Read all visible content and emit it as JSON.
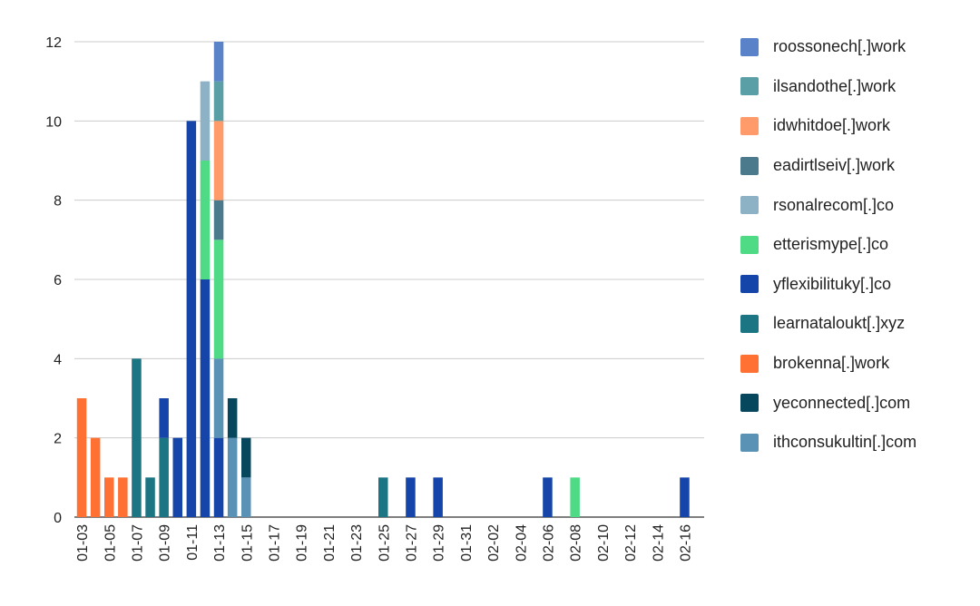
{
  "chart_data": {
    "type": "bar",
    "stacked": true,
    "title": "",
    "xlabel": "",
    "ylabel": "",
    "ylim": [
      0,
      12
    ],
    "y_ticks": [
      0,
      2,
      4,
      6,
      8,
      10,
      12
    ],
    "grid": true,
    "legend_position": "right",
    "categories": [
      "01-03",
      "01-04",
      "01-05",
      "01-06",
      "01-07",
      "01-08",
      "01-09",
      "01-10",
      "01-11",
      "01-12",
      "01-13",
      "01-14",
      "01-15",
      "01-16",
      "01-17",
      "01-18",
      "01-19",
      "01-20",
      "01-21",
      "01-22",
      "01-23",
      "01-24",
      "01-25",
      "01-26",
      "01-27",
      "01-28",
      "01-29",
      "01-30",
      "01-31",
      "02-01",
      "02-02",
      "02-03",
      "02-04",
      "02-05",
      "02-06",
      "02-07",
      "02-08",
      "02-09",
      "02-10",
      "02-11",
      "02-12",
      "02-13",
      "02-14",
      "02-15",
      "02-16"
    ],
    "tick_labels": [
      "01-03",
      "01-05",
      "01-07",
      "01-09",
      "01-11",
      "01-13",
      "01-15",
      "01-17",
      "01-19",
      "01-21",
      "01-23",
      "01-25",
      "01-27",
      "01-29",
      "01-31",
      "02-02",
      "02-04",
      "02-06",
      "02-08",
      "02-10",
      "02-12",
      "02-14",
      "02-16"
    ],
    "series": [
      {
        "name": "brokenna[.]work",
        "color": "#ff7033",
        "values": [
          3,
          2,
          1,
          1,
          0,
          0,
          0,
          0,
          0,
          0,
          0,
          0,
          0,
          0,
          0,
          0,
          0,
          0,
          0,
          0,
          0,
          0,
          0,
          0,
          0,
          0,
          0,
          0,
          0,
          0,
          0,
          0,
          0,
          0,
          0,
          0,
          0,
          0,
          0,
          0,
          0,
          0,
          0,
          0,
          0
        ]
      },
      {
        "name": "learnataloukt[.]xyz",
        "color": "#1b7582",
        "values": [
          0,
          0,
          0,
          0,
          4,
          1,
          2,
          0,
          0,
          0,
          0,
          0,
          0,
          0,
          0,
          0,
          0,
          0,
          0,
          0,
          0,
          0,
          1,
          0,
          0,
          0,
          0,
          0,
          0,
          0,
          0,
          0,
          0,
          0,
          0,
          0,
          0,
          0,
          0,
          0,
          0,
          0,
          0,
          0,
          0
        ]
      },
      {
        "name": "yflexibilituky[.]co",
        "color": "#1545a8",
        "values": [
          0,
          0,
          0,
          0,
          0,
          0,
          1,
          2,
          10,
          6,
          2,
          0,
          0,
          0,
          0,
          0,
          0,
          0,
          0,
          0,
          0,
          0,
          0,
          0,
          1,
          0,
          1,
          0,
          0,
          0,
          0,
          0,
          0,
          0,
          1,
          0,
          0,
          0,
          0,
          0,
          0,
          0,
          0,
          0,
          1
        ]
      },
      {
        "name": "ithconsukultin[.]com",
        "color": "#5a92b5",
        "values": [
          0,
          0,
          0,
          0,
          0,
          0,
          0,
          0,
          0,
          0,
          2,
          2,
          1,
          0,
          0,
          0,
          0,
          0,
          0,
          0,
          0,
          0,
          0,
          0,
          0,
          0,
          0,
          0,
          0,
          0,
          0,
          0,
          0,
          0,
          0,
          0,
          0,
          0,
          0,
          0,
          0,
          0,
          0,
          0,
          0
        ]
      },
      {
        "name": "etterismype[.]co",
        "color": "#4fda86",
        "values": [
          0,
          0,
          0,
          0,
          0,
          0,
          0,
          0,
          0,
          3,
          3,
          0,
          0,
          0,
          0,
          0,
          0,
          0,
          0,
          0,
          0,
          0,
          0,
          0,
          0,
          0,
          0,
          0,
          0,
          0,
          0,
          0,
          0,
          0,
          0,
          0,
          1,
          0,
          0,
          0,
          0,
          0,
          0,
          0,
          0
        ]
      },
      {
        "name": "eadirtlseiv[.]work",
        "color": "#4c7a8d",
        "values": [
          0,
          0,
          0,
          0,
          0,
          0,
          0,
          0,
          0,
          0,
          1,
          0,
          0,
          0,
          0,
          0,
          0,
          0,
          0,
          0,
          0,
          0,
          0,
          0,
          0,
          0,
          0,
          0,
          0,
          0,
          0,
          0,
          0,
          0,
          0,
          0,
          0,
          0,
          0,
          0,
          0,
          0,
          0,
          0,
          0
        ]
      },
      {
        "name": "idwhitdoe[.]work",
        "color": "#ff9b6b",
        "values": [
          0,
          0,
          0,
          0,
          0,
          0,
          0,
          0,
          0,
          0,
          2,
          0,
          0,
          0,
          0,
          0,
          0,
          0,
          0,
          0,
          0,
          0,
          0,
          0,
          0,
          0,
          0,
          0,
          0,
          0,
          0,
          0,
          0,
          0,
          0,
          0,
          0,
          0,
          0,
          0,
          0,
          0,
          0,
          0,
          0
        ]
      },
      {
        "name": "rsonalrecom[.]co",
        "color": "#8db1c5",
        "values": [
          0,
          0,
          0,
          0,
          0,
          0,
          0,
          0,
          0,
          2,
          0,
          0,
          0,
          0,
          0,
          0,
          0,
          0,
          0,
          0,
          0,
          0,
          0,
          0,
          0,
          0,
          0,
          0,
          0,
          0,
          0,
          0,
          0,
          0,
          0,
          0,
          0,
          0,
          0,
          0,
          0,
          0,
          0,
          0,
          0
        ]
      },
      {
        "name": "ilsandothe[.]work",
        "color": "#5a9ea6",
        "values": [
          0,
          0,
          0,
          0,
          0,
          0,
          0,
          0,
          0,
          0,
          1,
          0,
          0,
          0,
          0,
          0,
          0,
          0,
          0,
          0,
          0,
          0,
          0,
          0,
          0,
          0,
          0,
          0,
          0,
          0,
          0,
          0,
          0,
          0,
          0,
          0,
          0,
          0,
          0,
          0,
          0,
          0,
          0,
          0,
          0
        ]
      },
      {
        "name": "roossonech[.]work",
        "color": "#5a82c8",
        "values": [
          0,
          0,
          0,
          0,
          0,
          0,
          0,
          0,
          0,
          0,
          1,
          0,
          0,
          0,
          0,
          0,
          0,
          0,
          0,
          0,
          0,
          0,
          0,
          0,
          0,
          0,
          0,
          0,
          0,
          0,
          0,
          0,
          0,
          0,
          0,
          0,
          0,
          0,
          0,
          0,
          0,
          0,
          0,
          0,
          0
        ]
      },
      {
        "name": "yeconnected[.]com",
        "color": "#07475e",
        "values": [
          0,
          0,
          0,
          0,
          0,
          0,
          0,
          0,
          0,
          0,
          0,
          1,
          1,
          0,
          0,
          0,
          0,
          0,
          0,
          0,
          0,
          0,
          0,
          0,
          0,
          0,
          0,
          0,
          0,
          0,
          0,
          0,
          0,
          0,
          0,
          0,
          0,
          0,
          0,
          0,
          0,
          0,
          0,
          0,
          0
        ]
      }
    ],
    "legend_order": [
      "roossonech[.]work",
      "ilsandothe[.]work",
      "idwhitdoe[.]work",
      "eadirtlseiv[.]work",
      "rsonalrecom[.]co",
      "etterismype[.]co",
      "yflexibilituky[.]co",
      "learnataloukt[.]xyz",
      "brokenna[.]work",
      "yeconnected[.]com",
      "ithconsukultin[.]com"
    ]
  }
}
